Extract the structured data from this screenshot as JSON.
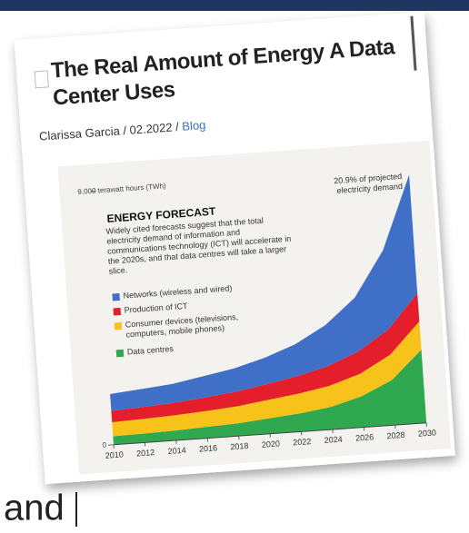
{
  "title": "The Real Amount of Energy A Data Center Uses",
  "byline": {
    "author": "Clarissa Garcia",
    "date": "02.2022",
    "category": "Blog",
    "separator": "/"
  },
  "footer_text": "and",
  "chart_data": {
    "type": "stacked_area",
    "heading": "ENERGY FORECAST",
    "description": "Widely cited forecasts suggest that the total electricity demand of information and communications technology (ICT) will accelerate in the 2020s, and that data centres will take a larger slice.",
    "annotation": "20.9% of projected electricity demand",
    "x": [
      2010,
      2012,
      2014,
      2016,
      2018,
      2020,
      2022,
      2024,
      2026,
      2028,
      2030
    ],
    "xlim": [
      2010,
      2030
    ],
    "xticks": [
      2010,
      2012,
      2014,
      2016,
      2018,
      2020,
      2022,
      2024,
      2026,
      2028,
      2030
    ],
    "ylim": [
      0,
      9000
    ],
    "yticks": [
      0,
      {
        "value": 9000,
        "label": "9,000 terawatt hours (TWh)"
      }
    ],
    "series": [
      {
        "name": "Networks (wireless and wired)",
        "color": "#3f6fc7",
        "values": [
          600,
          640,
          670,
          760,
          830,
          940,
          1130,
          1450,
          1900,
          2800,
          4200
        ]
      },
      {
        "name": "Production of ICT",
        "color": "#e41f2b",
        "values": [
          400,
          420,
          440,
          480,
          520,
          560,
          620,
          700,
          800,
          900,
          1000
        ]
      },
      {
        "name": "Consumer devices (televisions, computers, mobile phones)",
        "color": "#f7c31a",
        "values": [
          500,
          520,
          540,
          560,
          600,
          650,
          700,
          750,
          800,
          900,
          1000
        ]
      },
      {
        "name": "Data centres",
        "color": "#2fa84f",
        "values": [
          300,
          320,
          350,
          400,
          450,
          550,
          650,
          800,
          1100,
          1600,
          2600
        ]
      }
    ]
  }
}
